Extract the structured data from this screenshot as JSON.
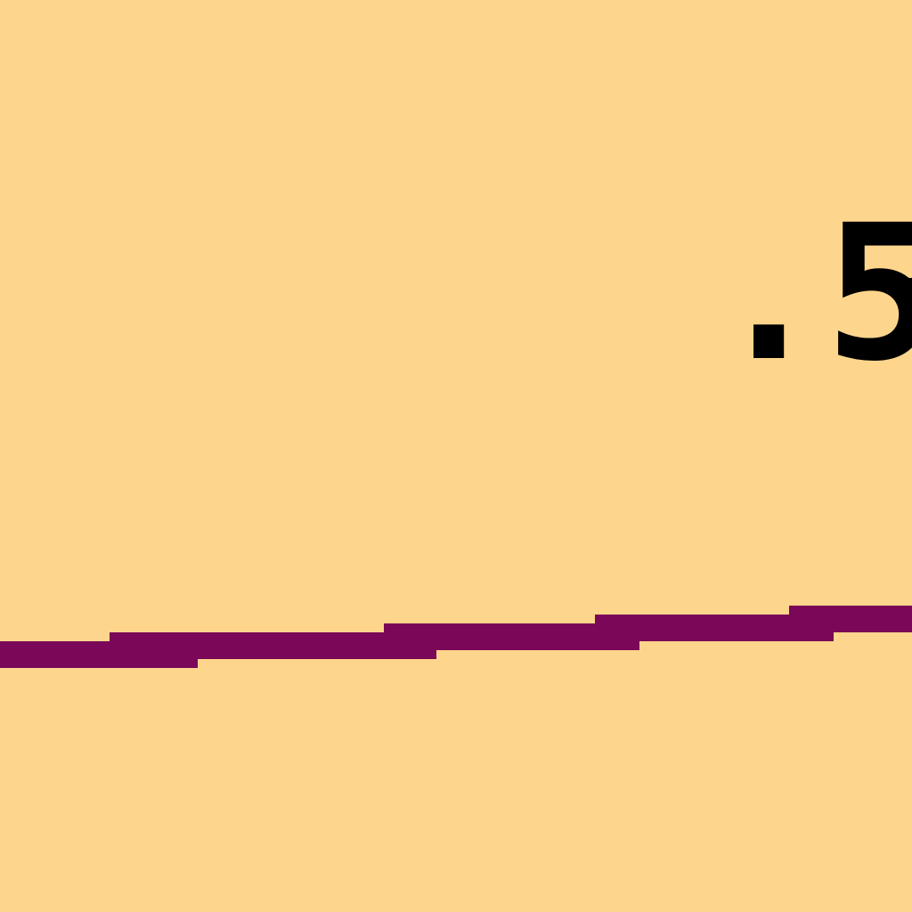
{
  "view": {
    "background_color": "#FED58C",
    "label_text": ".5",
    "label_color": "#000000",
    "trace_color": "#7A0758"
  }
}
